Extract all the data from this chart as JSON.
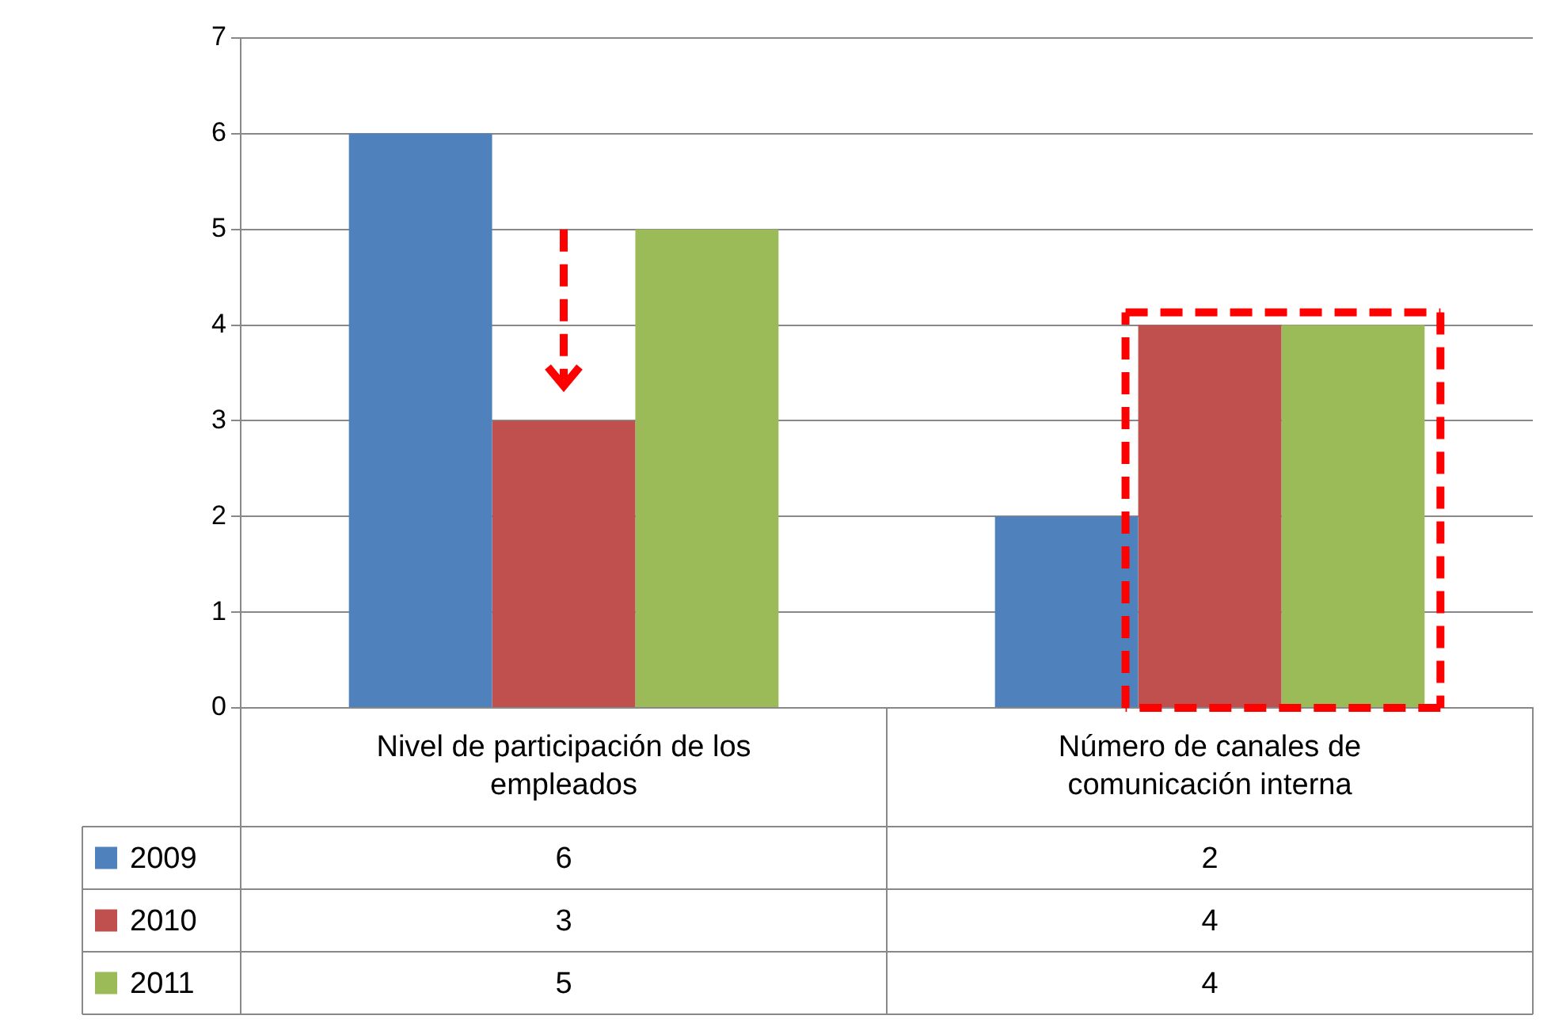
{
  "chart_data": {
    "type": "bar",
    "categories": [
      "Nivel de participación de los empleados",
      "Número de canales de comunicación interna"
    ],
    "series": [
      {
        "name": "2009",
        "color": "#4f81bd",
        "values": [
          6,
          2
        ]
      },
      {
        "name": "2010",
        "color": "#c0504d",
        "values": [
          3,
          4
        ]
      },
      {
        "name": "2011",
        "color": "#9bbb59",
        "values": [
          5,
          4
        ]
      }
    ],
    "ylim": [
      0,
      7
    ],
    "yticks": [
      0,
      1,
      2,
      3,
      4,
      5,
      6,
      7
    ],
    "grid": "y",
    "legend": "bottom",
    "data_labels": true
  }
}
